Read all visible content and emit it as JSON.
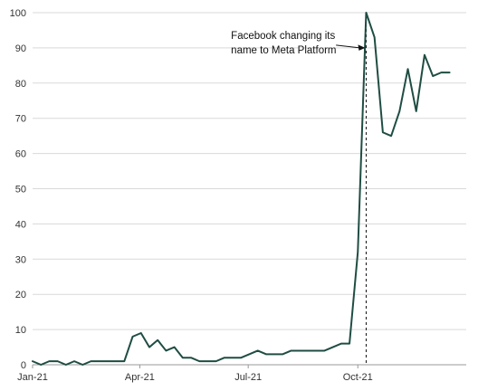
{
  "chart_data": {
    "type": "line",
    "title": "",
    "xlabel": "",
    "ylabel": "",
    "ylim": [
      0,
      100
    ],
    "yticks": [
      0,
      10,
      20,
      30,
      40,
      50,
      60,
      70,
      80,
      90,
      100
    ],
    "xlim": [
      "2021-01-01",
      "2021-12-31"
    ],
    "xticks": [
      {
        "date": "2021-01-01",
        "label": "Jan-21"
      },
      {
        "date": "2021-04-01",
        "label": "Apr-21"
      },
      {
        "date": "2021-07-01",
        "label": "Jul-21"
      },
      {
        "date": "2021-10-01",
        "label": "Oct-21"
      }
    ],
    "grid": {
      "horizontal": true,
      "vertical": false
    },
    "line_color": "#1f4d43",
    "series": [
      {
        "points": [
          [
            "2021-01-01",
            1
          ],
          [
            "2021-01-08",
            0
          ],
          [
            "2021-01-15",
            1
          ],
          [
            "2021-01-22",
            1
          ],
          [
            "2021-01-29",
            0
          ],
          [
            "2021-02-05",
            1
          ],
          [
            "2021-02-12",
            0
          ],
          [
            "2021-02-19",
            1
          ],
          [
            "2021-02-26",
            1
          ],
          [
            "2021-03-05",
            1
          ],
          [
            "2021-03-12",
            1
          ],
          [
            "2021-03-19",
            1
          ],
          [
            "2021-03-26",
            8
          ],
          [
            "2021-04-02",
            9
          ],
          [
            "2021-04-09",
            5
          ],
          [
            "2021-04-16",
            7
          ],
          [
            "2021-04-23",
            4
          ],
          [
            "2021-04-30",
            5
          ],
          [
            "2021-05-07",
            2
          ],
          [
            "2021-05-14",
            2
          ],
          [
            "2021-05-21",
            1
          ],
          [
            "2021-05-28",
            1
          ],
          [
            "2021-06-04",
            1
          ],
          [
            "2021-06-11",
            2
          ],
          [
            "2021-06-18",
            2
          ],
          [
            "2021-06-25",
            2
          ],
          [
            "2021-07-02",
            3
          ],
          [
            "2021-07-09",
            4
          ],
          [
            "2021-07-16",
            3
          ],
          [
            "2021-07-23",
            3
          ],
          [
            "2021-07-30",
            3
          ],
          [
            "2021-08-06",
            4
          ],
          [
            "2021-08-13",
            4
          ],
          [
            "2021-08-20",
            4
          ],
          [
            "2021-08-27",
            4
          ],
          [
            "2021-09-03",
            4
          ],
          [
            "2021-09-10",
            5
          ],
          [
            "2021-09-17",
            6
          ],
          [
            "2021-09-24",
            6
          ],
          [
            "2021-10-01",
            32
          ],
          [
            "2021-10-08",
            100
          ],
          [
            "2021-10-15",
            93
          ],
          [
            "2021-10-22",
            66
          ],
          [
            "2021-10-29",
            65
          ],
          [
            "2021-11-05",
            72
          ],
          [
            "2021-11-12",
            84
          ],
          [
            "2021-11-19",
            72
          ],
          [
            "2021-11-26",
            88
          ],
          [
            "2021-12-03",
            82
          ],
          [
            "2021-12-10",
            83
          ],
          [
            "2021-12-17",
            83
          ]
        ]
      }
    ],
    "annotation": {
      "lines": [
        "Facebook changing its",
        "name to Meta Platform"
      ],
      "date": "2021-10-08",
      "arrow_value": 90,
      "text_top_value": 92.5,
      "text_left_date": "2021-07-01"
    }
  }
}
